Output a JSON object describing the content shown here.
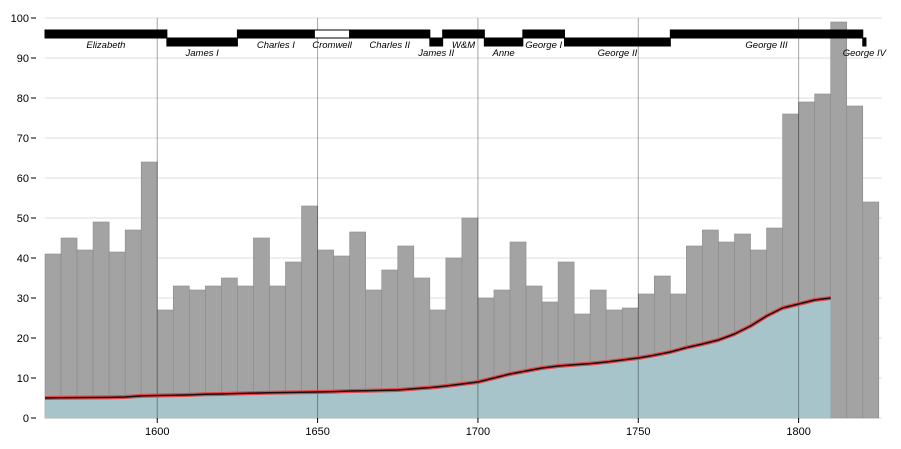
{
  "chart_data": {
    "type": "bar",
    "xlim": [
      1565,
      1826
    ],
    "ylim": [
      0,
      100
    ],
    "x_ticks": [
      1600,
      1650,
      1700,
      1750,
      1800
    ],
    "y_ticks": [
      0,
      10,
      20,
      30,
      40,
      50,
      60,
      70,
      80,
      90,
      100
    ],
    "grid": true,
    "colors": {
      "bar_fill": "#a3a3a3",
      "bar_stroke": "#8a8a8a",
      "area_fill": "#a6c6cc",
      "wages_line": "#111111",
      "wages_halo": "#e0484b",
      "reign_bar": "#000000",
      "grid": "#dddddd"
    },
    "wheat": {
      "x": [
        1565,
        1570,
        1575,
        1580,
        1585,
        1590,
        1595,
        1600,
        1605,
        1610,
        1615,
        1620,
        1625,
        1630,
        1635,
        1640,
        1645,
        1650,
        1655,
        1660,
        1665,
        1670,
        1675,
        1680,
        1685,
        1690,
        1695,
        1700,
        1705,
        1710,
        1715,
        1720,
        1725,
        1730,
        1735,
        1740,
        1745,
        1750,
        1755,
        1760,
        1765,
        1770,
        1775,
        1780,
        1785,
        1790,
        1795,
        1800,
        1805,
        1810,
        1815,
        1820
      ],
      "values": [
        41,
        45,
        42,
        49,
        41.5,
        47,
        64,
        27,
        33,
        32,
        33,
        35,
        33,
        45,
        33,
        39,
        53,
        42,
        40.5,
        46.5,
        32,
        37,
        43,
        35,
        27,
        40,
        50,
        30,
        32,
        44,
        33,
        29,
        39,
        26,
        32,
        27,
        27.5,
        31,
        35.5,
        31,
        43,
        47,
        44,
        46,
        42,
        47.5,
        76,
        79,
        81,
        99,
        78,
        54
      ]
    },
    "wages": {
      "x": [
        1565,
        1570,
        1575,
        1580,
        1585,
        1590,
        1595,
        1600,
        1605,
        1610,
        1615,
        1620,
        1625,
        1630,
        1635,
        1640,
        1645,
        1650,
        1655,
        1660,
        1665,
        1670,
        1675,
        1680,
        1685,
        1690,
        1695,
        1700,
        1705,
        1710,
        1715,
        1720,
        1725,
        1730,
        1735,
        1740,
        1745,
        1750,
        1755,
        1760,
        1765,
        1770,
        1775,
        1780,
        1785,
        1790,
        1795,
        1800,
        1805,
        1810
      ],
      "values": [
        5,
        5.05,
        5.08,
        5.12,
        5.15,
        5.25,
        5.54,
        5.61,
        5.69,
        5.78,
        5.94,
        6.01,
        6.12,
        6.22,
        6.3,
        6.37,
        6.45,
        6.5,
        6.6,
        6.75,
        6.8,
        6.9,
        7,
        7.3,
        7.6,
        8,
        8.5,
        9,
        10,
        11,
        11.75,
        12.5,
        13,
        13.3,
        13.6,
        14,
        14.5,
        15,
        15.7,
        16.5,
        17.6,
        18.5,
        19.5,
        21,
        23,
        25.5,
        27.5,
        28.5,
        29.5,
        30
      ]
    },
    "monarchs": [
      {
        "name": "Elizabeth",
        "start": 1565,
        "end": 1603,
        "row": 0,
        "commonwealth": false
      },
      {
        "name": "James I",
        "start": 1603,
        "end": 1625,
        "row": 1,
        "commonwealth": false
      },
      {
        "name": "Charles I",
        "start": 1625,
        "end": 1649,
        "row": 0,
        "commonwealth": false
      },
      {
        "name": "Cromwell",
        "start": 1649,
        "end": 1660,
        "row": 0,
        "commonwealth": true
      },
      {
        "name": "Charles II",
        "start": 1660,
        "end": 1685,
        "row": 0,
        "commonwealth": false
      },
      {
        "name": "James II",
        "start": 1685,
        "end": 1689,
        "row": 1,
        "commonwealth": false
      },
      {
        "name": "W&M",
        "start": 1689,
        "end": 1702,
        "row": 0,
        "commonwealth": false
      },
      {
        "name": "Anne",
        "start": 1702,
        "end": 1714,
        "row": 1,
        "commonwealth": false
      },
      {
        "name": "George I",
        "start": 1714,
        "end": 1727,
        "row": 0,
        "commonwealth": false
      },
      {
        "name": "George II",
        "start": 1727,
        "end": 1760,
        "row": 1,
        "commonwealth": false
      },
      {
        "name": "George III",
        "start": 1760,
        "end": 1820,
        "row": 0,
        "commonwealth": false
      },
      {
        "name": "George IV",
        "start": 1820,
        "end": 1821,
        "row": 1,
        "commonwealth": false
      }
    ]
  }
}
